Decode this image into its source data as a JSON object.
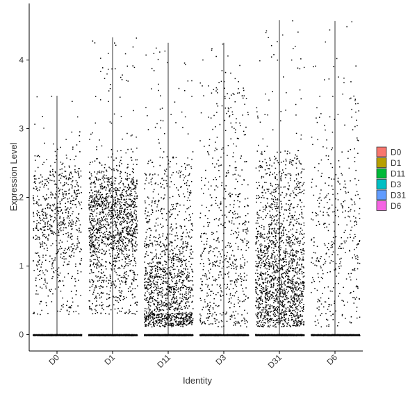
{
  "chart_data": {
    "type": "scatter",
    "subtype": "violin-jitter",
    "title": "",
    "xlabel": "Identity",
    "ylabel": "Expression Level",
    "categories": [
      "D0",
      "D1",
      "D11",
      "D3",
      "D31",
      "D6"
    ],
    "ylim": [
      -0.25,
      4.65
    ],
    "yticks": [
      0,
      1,
      2,
      3,
      4
    ],
    "grid": false,
    "legend": {
      "position": "right",
      "entries": [
        "D0",
        "D1",
        "D11",
        "D3",
        "D31",
        "D6"
      ]
    },
    "colors": [
      "#F8766D",
      "#B79F00",
      "#00BA38",
      "#00BFC4",
      "#619CFF",
      "#F564E3"
    ],
    "point_color": "#000000",
    "series": [
      {
        "category": "D0",
        "max": 3.48,
        "nonzero_points": 720,
        "zero_points": 900,
        "dense_range": [
          0.3,
          2.45
        ],
        "mode": 1.8
      },
      {
        "category": "D1",
        "max": 4.33,
        "nonzero_points": 1500,
        "zero_points": 1100,
        "dense_range": [
          0.3,
          2.3
        ],
        "mode": 1.7
      },
      {
        "category": "D11",
        "max": 4.25,
        "nonzero_points": 1400,
        "zero_points": 1100,
        "dense_range": [
          0.15,
          2.6
        ],
        "mode": 0.5
      },
      {
        "category": "D3",
        "max": 4.25,
        "nonzero_points": 650,
        "zero_points": 1000,
        "dense_range": [
          0.15,
          3.6
        ],
        "mode": 1.1
      },
      {
        "category": "D31",
        "max": 4.58,
        "nonzero_points": 1700,
        "zero_points": 1100,
        "dense_range": [
          0.3,
          2.7
        ],
        "mode": 0.7
      },
      {
        "category": "D6",
        "max": 4.57,
        "nonzero_points": 420,
        "zero_points": 900,
        "dense_range": [
          0.2,
          3.5
        ],
        "mode": 1.3
      }
    ]
  }
}
